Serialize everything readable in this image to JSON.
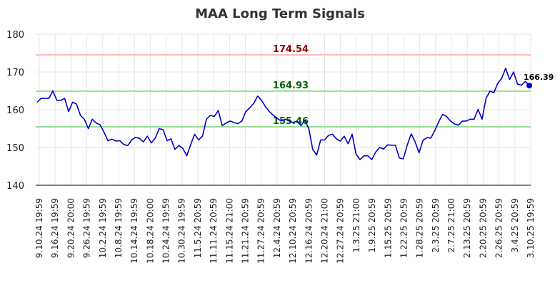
{
  "chart_data": {
    "type": "line",
    "title": "MAA Long Term Signals",
    "xlabel": "",
    "ylabel": "",
    "ylim": [
      140,
      180
    ],
    "yticks": [
      140,
      150,
      160,
      170,
      180
    ],
    "grid": true,
    "x_tick_labels": [
      "9.10.24 19:59",
      "9.16.24 19:59",
      "9.20.24 20:00",
      "9.26.24 19:59",
      "10.2.24 19:59",
      "10.8.24 19:59",
      "10.14.24 19:59",
      "10.18.24 20:00",
      "10.24.24 19:59",
      "10.30.24 19:59",
      "11.5.24 20:59",
      "11.11.24 20:59",
      "11.15.24 21:00",
      "11.21.24 20:59",
      "11.27.24 20:59",
      "12.4.24 20:59",
      "12.10.24 20:59",
      "12.16.24 20:59",
      "12.20.24 21:00",
      "12.27.24 20:59",
      "1.3.25 21:00",
      "1.9.25 20:59",
      "1.15.25 20:59",
      "1.22.25 20:59",
      "1.28.25 20:59",
      "2.3.25 20:59",
      "2.7.25 21:00",
      "2.13.25 20:59",
      "2.20.25 20:59",
      "2.26.25 20:59",
      "3.4.25 20:59",
      "3.10.25 19:59"
    ],
    "series": [
      {
        "color": "#0000cc",
        "values": [
          162.0,
          163.0,
          163.0,
          163.0,
          165.0,
          162.5,
          162.5,
          163.0,
          159.5,
          162.0,
          161.5,
          158.5,
          157.5,
          155.0,
          157.5,
          156.5,
          156.0,
          154.0,
          151.8,
          152.2,
          151.7,
          151.8,
          150.8,
          150.5,
          152.0,
          152.7,
          152.4,
          151.5,
          153.0,
          151.2,
          152.5,
          155.0,
          154.7,
          151.8,
          152.3,
          149.5,
          150.5,
          149.8,
          147.8,
          150.8,
          153.5,
          152.0,
          153.0,
          157.5,
          158.5,
          158.2,
          159.8,
          155.8,
          156.5,
          157.0,
          156.6,
          156.3,
          157.0,
          159.5,
          160.5,
          161.7,
          163.6,
          162.5,
          160.8,
          159.5,
          158.5,
          157.7,
          157.0,
          157.5,
          157.0,
          156.6,
          157.0,
          155.8,
          157.2,
          155.0,
          149.5,
          148.0,
          152.0,
          152.0,
          153.2,
          153.5,
          152.3,
          151.7,
          153.0,
          151.0,
          153.5,
          148.2,
          146.8,
          147.8,
          147.8,
          146.8,
          148.8,
          150.0,
          149.6,
          150.7,
          150.6,
          150.6,
          147.2,
          147.0,
          150.6,
          153.6,
          151.5,
          148.6,
          151.9,
          152.6,
          152.5,
          154.5,
          156.8,
          158.8,
          158.2,
          157.0,
          156.2,
          155.9,
          157.0,
          157.0,
          157.5,
          157.5,
          160.1,
          157.5,
          163.0,
          164.9,
          164.5,
          167.0,
          168.3,
          171.0,
          168.0,
          170.0,
          166.8,
          166.5,
          167.5,
          166.39
        ]
      }
    ],
    "hlines": [
      {
        "value": 174.54,
        "label": "174.54",
        "line_color": "#ffbbbb",
        "label_color": "#8b0000"
      },
      {
        "value": 164.93,
        "label": "164.93",
        "line_color": "#99dd99",
        "label_color": "#006400"
      },
      {
        "value": 155.46,
        "label": "155.46",
        "line_color": "#99dd99",
        "label_color": "#006400"
      }
    ],
    "last_point_label": "166.39"
  }
}
